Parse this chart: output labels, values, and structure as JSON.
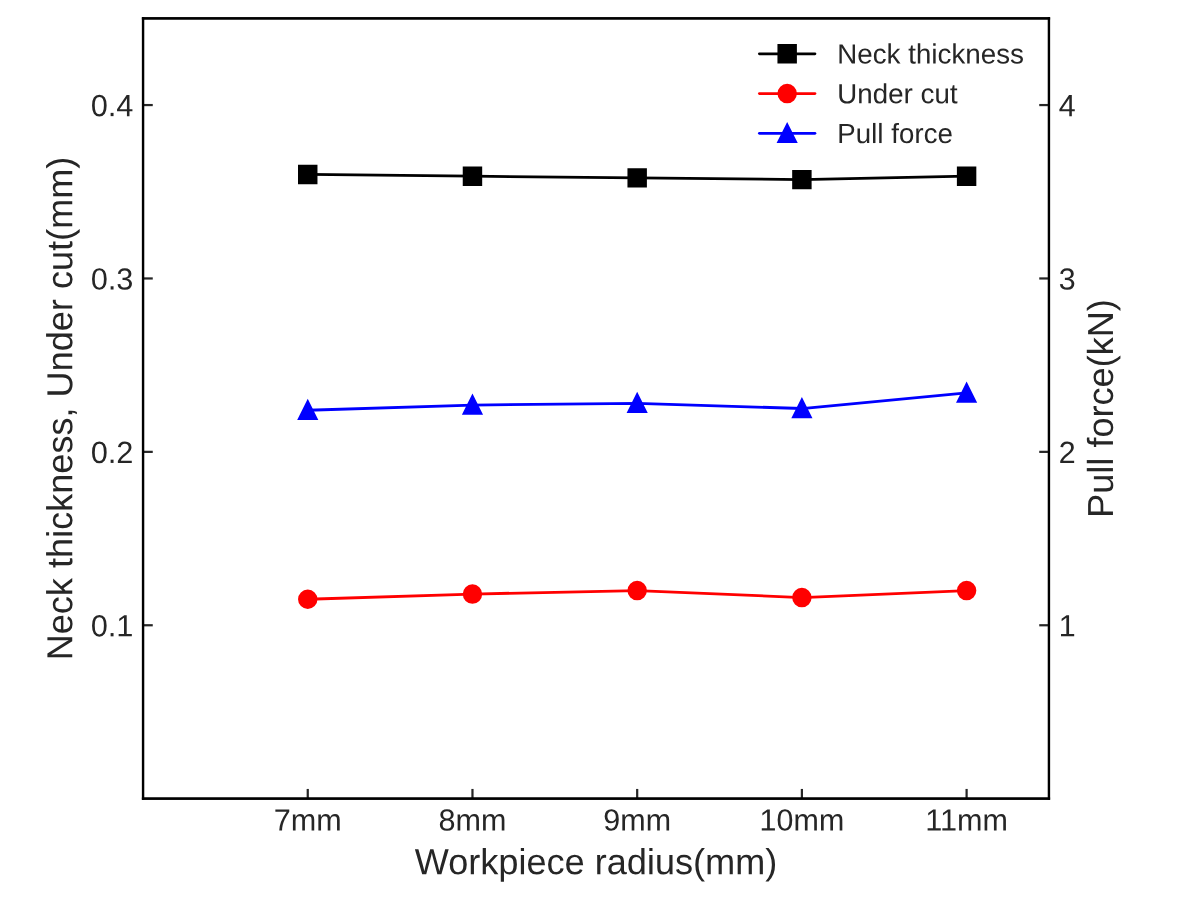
{
  "chart_data": {
    "type": "line",
    "xlabel": "Workpiece radius(mm)",
    "ylabel": "Neck thickness, Under cut(mm)",
    "y2label": "Pull force(kN)",
    "categories": [
      "7mm",
      "8mm",
      "9mm",
      "10mm",
      "11mm"
    ],
    "series": [
      {
        "name": "Neck thickness",
        "color": "#000000",
        "marker": "square",
        "values": [
          0.36,
          0.359,
          0.358,
          0.357,
          0.359
        ]
      },
      {
        "name": "Under cut",
        "color": "#ff0000",
        "marker": "circle",
        "values": [
          0.115,
          0.118,
          0.12,
          0.116,
          0.12
        ]
      },
      {
        "name": "Pull force",
        "color": "#0000ff",
        "marker": "triangle",
        "axis": "y2",
        "values": [
          2.24,
          2.27,
          2.28,
          2.25,
          2.34
        ]
      }
    ],
    "ylim": [
      0,
      0.45
    ],
    "yticks": [
      {
        "value": 0.1,
        "label": "0.1"
      },
      {
        "value": 0.2,
        "label": "0.2"
      },
      {
        "value": 0.3,
        "label": "0.3"
      },
      {
        "value": 0.4,
        "label": "0.4"
      }
    ],
    "y2lim": [
      0,
      4.5
    ],
    "y2ticks": [
      1,
      2,
      3,
      4
    ],
    "legend": "top right",
    "grid": false,
    "line_style": "solid"
  }
}
